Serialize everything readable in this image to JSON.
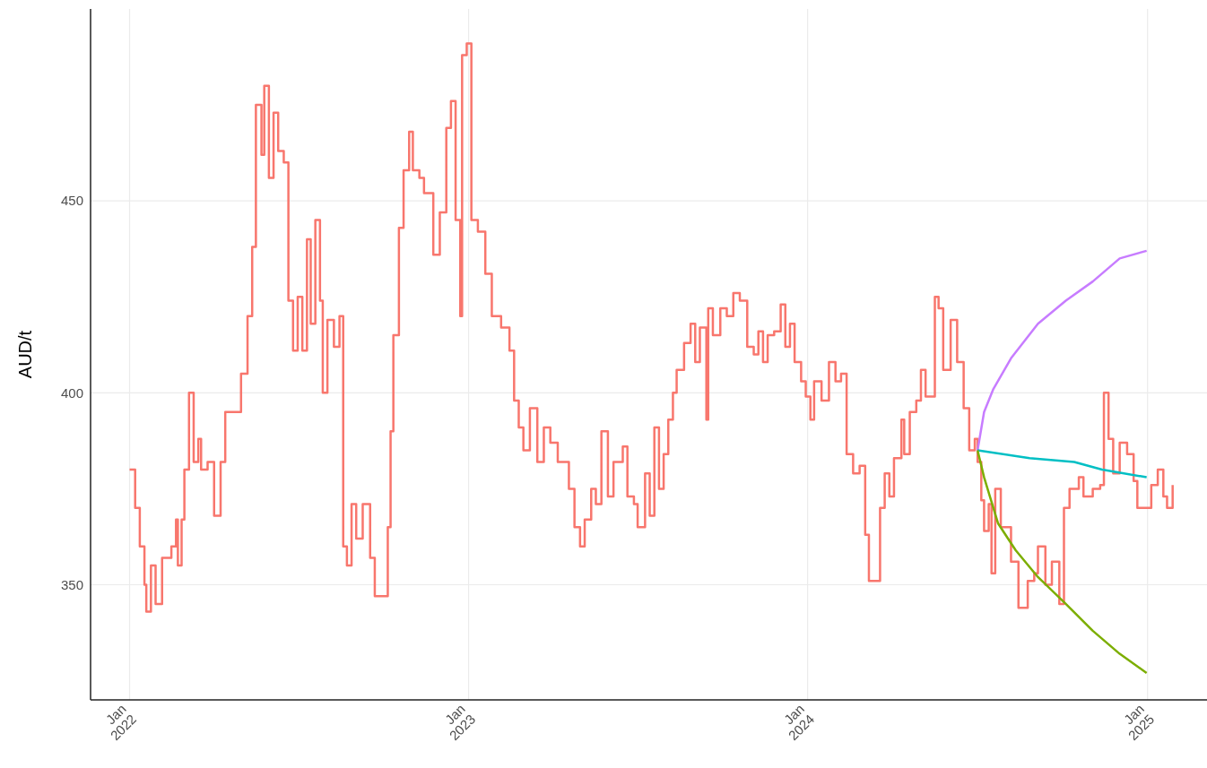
{
  "chart_data": {
    "type": "line",
    "ylabel": "AUD/t",
    "xlim": [
      "2021-11-20",
      "2025-03-06"
    ],
    "ylim": [
      320,
      500
    ],
    "yticks": [
      350,
      400,
      450
    ],
    "xticks": [
      {
        "value": "2022-01-01",
        "label": "Jan 2022"
      },
      {
        "value": "2023-01-01",
        "label": "Jan 2023"
      },
      {
        "value": "2024-01-01",
        "label": "Jan 2024"
      },
      {
        "value": "2025-01-01",
        "label": "Jan 2025"
      }
    ],
    "grid": true,
    "line_style": "solid",
    "marker": "none",
    "series": [
      {
        "type": "step",
        "color": "#f8766d",
        "x": [
          "2022-01-01",
          "2022-01-07",
          "2022-01-12",
          "2022-01-17",
          "2022-01-19",
          "2022-01-24",
          "2022-01-29",
          "2022-02-05",
          "2022-02-15",
          "2022-02-20",
          "2022-02-22",
          "2022-02-26",
          "2022-03-01",
          "2022-03-06",
          "2022-03-11",
          "2022-03-16",
          "2022-03-19",
          "2022-03-26",
          "2022-04-02",
          "2022-04-09",
          "2022-04-14",
          "2022-04-26",
          "2022-05-01",
          "2022-05-08",
          "2022-05-13",
          "2022-05-17",
          "2022-05-23",
          "2022-05-26",
          "2022-05-31",
          "2022-06-05",
          "2022-06-10",
          "2022-06-16",
          "2022-06-21",
          "2022-06-26",
          "2022-07-01",
          "2022-07-06",
          "2022-07-11",
          "2022-07-15",
          "2022-07-20",
          "2022-07-25",
          "2022-07-28",
          "2022-08-02",
          "2022-08-09",
          "2022-08-15",
          "2022-08-19",
          "2022-08-23",
          "2022-08-28",
          "2022-09-02",
          "2022-09-09",
          "2022-09-17",
          "2022-09-22",
          "2022-10-01",
          "2022-10-06",
          "2022-10-09",
          "2022-10-12",
          "2022-10-18",
          "2022-10-23",
          "2022-10-29",
          "2022-11-02",
          "2022-11-09",
          "2022-11-14",
          "2022-11-24",
          "2022-12-01",
          "2022-12-08",
          "2022-12-13",
          "2022-12-18",
          "2022-12-23",
          "2022-12-25",
          "2022-12-30",
          "2023-01-04",
          "2023-01-11",
          "2023-01-19",
          "2023-01-26",
          "2023-02-05",
          "2023-02-14",
          "2023-02-19",
          "2023-02-24",
          "2023-03-01",
          "2023-03-08",
          "2023-03-16",
          "2023-03-23",
          "2023-03-30",
          "2023-04-07",
          "2023-04-19",
          "2023-04-25",
          "2023-05-01",
          "2023-05-06",
          "2023-05-13",
          "2023-05-18",
          "2023-05-24",
          "2023-05-31",
          "2023-06-06",
          "2023-06-16",
          "2023-06-21",
          "2023-06-28",
          "2023-07-02",
          "2023-07-10",
          "2023-07-15",
          "2023-07-20",
          "2023-07-25",
          "2023-07-30",
          "2023-08-04",
          "2023-08-09",
          "2023-08-13",
          "2023-08-21",
          "2023-08-28",
          "2023-09-02",
          "2023-09-07",
          "2023-09-14",
          "2023-09-16",
          "2023-09-21",
          "2023-09-29",
          "2023-10-06",
          "2023-10-13",
          "2023-10-20",
          "2023-10-28",
          "2023-11-04",
          "2023-11-09",
          "2023-11-14",
          "2023-11-19",
          "2023-11-26",
          "2023-12-03",
          "2023-12-08",
          "2023-12-13",
          "2023-12-18",
          "2023-12-25",
          "2023-12-30",
          "2024-01-04",
          "2024-01-08",
          "2024-01-16",
          "2024-01-24",
          "2024-01-31",
          "2024-02-06",
          "2024-02-12",
          "2024-02-19",
          "2024-02-26",
          "2024-03-03",
          "2024-03-07",
          "2024-03-14",
          "2024-03-19",
          "2024-03-24",
          "2024-03-29",
          "2024-04-03",
          "2024-04-11",
          "2024-04-14",
          "2024-04-20",
          "2024-04-27",
          "2024-05-02",
          "2024-05-07",
          "2024-05-17",
          "2024-05-21",
          "2024-05-26",
          "2024-06-03",
          "2024-06-10",
          "2024-06-17",
          "2024-06-23",
          "2024-06-29",
          "2024-07-02",
          "2024-07-06",
          "2024-07-09",
          "2024-07-14",
          "2024-07-17",
          "2024-07-21",
          "2024-07-27",
          "2024-08-07",
          "2024-08-15",
          "2024-08-25",
          "2024-09-01",
          "2024-09-05",
          "2024-09-13",
          "2024-09-20",
          "2024-09-28",
          "2024-10-03",
          "2024-10-09",
          "2024-10-19",
          "2024-10-24",
          "2024-11-03",
          "2024-11-11",
          "2024-11-15",
          "2024-11-20",
          "2024-11-25",
          "2024-12-02",
          "2024-12-10",
          "2024-12-17",
          "2024-12-21",
          "2024-12-31",
          "2025-01-05",
          "2025-01-12",
          "2025-01-18",
          "2025-01-22",
          "2025-01-28"
        ],
        "values": [
          380,
          370,
          360,
          350,
          343,
          355,
          345,
          357,
          360,
          367,
          355,
          367,
          380,
          400,
          382,
          388,
          380,
          382,
          368,
          382,
          395,
          395,
          405,
          420,
          438,
          475,
          462,
          480,
          456,
          473,
          463,
          460,
          424,
          411,
          425,
          411,
          440,
          418,
          445,
          424,
          400,
          419,
          412,
          420,
          360,
          355,
          371,
          362,
          371,
          357,
          347,
          347,
          365,
          390,
          415,
          443,
          458,
          468,
          458,
          456,
          452,
          436,
          447,
          469,
          476,
          445,
          420,
          488,
          491,
          445,
          442,
          431,
          420,
          417,
          411,
          398,
          391,
          385,
          396,
          382,
          391,
          387,
          382,
          375,
          365,
          360,
          367,
          375,
          371,
          390,
          373,
          382,
          386,
          373,
          371,
          365,
          379,
          368,
          391,
          375,
          384,
          393,
          400,
          406,
          413,
          418,
          408,
          417,
          393,
          422,
          415,
          422,
          420,
          426,
          424,
          412,
          410,
          416,
          408,
          415,
          416,
          423,
          412,
          418,
          408,
          403,
          399,
          393,
          403,
          398,
          408,
          403,
          405,
          384,
          379,
          381,
          363,
          351,
          351,
          370,
          379,
          373,
          383,
          393,
          384,
          395,
          398,
          406,
          399,
          425,
          422,
          406,
          419,
          408,
          396,
          385,
          388,
          382,
          372,
          364,
          371,
          353,
          375,
          365,
          356,
          344,
          351,
          353,
          360,
          350,
          356,
          345,
          370,
          375,
          378,
          373,
          375,
          376,
          400,
          388,
          379,
          387,
          384,
          377,
          370,
          370,
          376,
          380,
          373,
          370,
          376
        ]
      },
      {
        "color": "#c77cff",
        "x": [
          "2024-07-02",
          "2024-07-09",
          "2024-07-19",
          "2024-08-07",
          "2024-09-05",
          "2024-10-05",
          "2024-11-03",
          "2024-12-02",
          "2024-12-31"
        ],
        "values": [
          385,
          395,
          401,
          409,
          418,
          424,
          429,
          435,
          437
        ]
      },
      {
        "color": "#00bfc4",
        "x": [
          "2024-07-02",
          "2024-08-27",
          "2024-10-14",
          "2024-11-13",
          "2024-12-31"
        ],
        "values": [
          385,
          383,
          382,
          380,
          378
        ]
      },
      {
        "color": "#7cae00",
        "x": [
          "2024-07-02",
          "2024-07-09",
          "2024-07-24",
          "2024-08-12",
          "2024-09-05",
          "2024-10-05",
          "2024-11-03",
          "2024-12-02",
          "2024-12-31"
        ],
        "values": [
          385,
          378,
          366,
          359,
          352,
          345,
          338,
          332,
          327
        ]
      }
    ]
  }
}
